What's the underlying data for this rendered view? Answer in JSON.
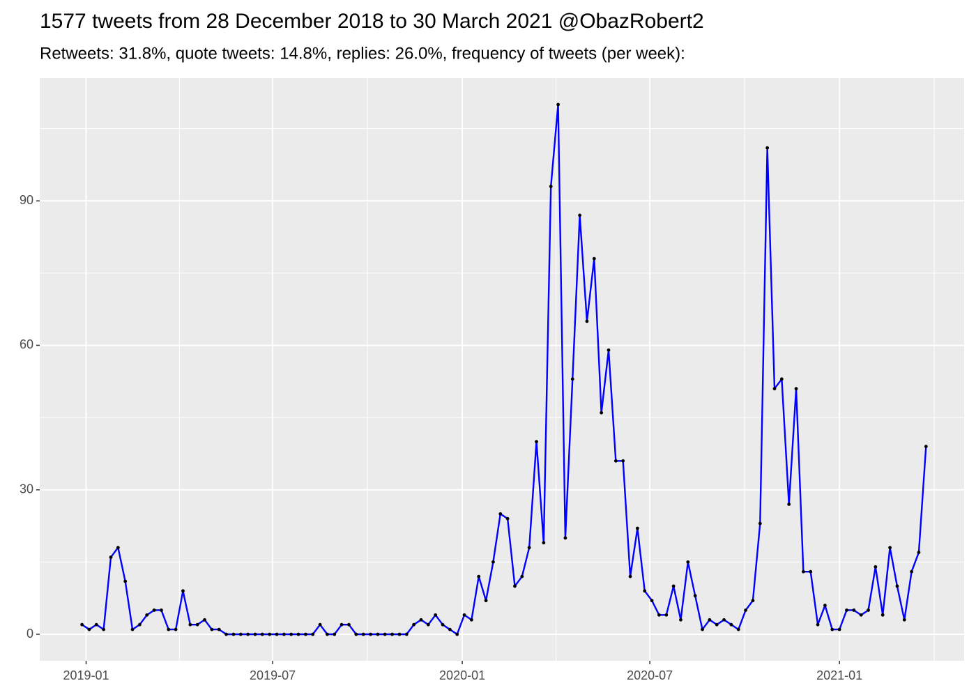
{
  "chart_data": {
    "type": "line",
    "title": "1577 tweets from 28 December 2018 to 30 March 2021 @ObazRobert2",
    "subtitle": "Retweets: 31.8%, quote tweets: 14.8%, replies: 26.0%, frequency of tweets (per week):",
    "x": [
      "2018-12-28",
      "2019-01-04",
      "2019-01-11",
      "2019-01-18",
      "2019-01-25",
      "2019-02-01",
      "2019-02-08",
      "2019-02-15",
      "2019-02-22",
      "2019-03-01",
      "2019-03-08",
      "2019-03-15",
      "2019-03-22",
      "2019-03-29",
      "2019-04-05",
      "2019-04-12",
      "2019-04-19",
      "2019-04-26",
      "2019-05-03",
      "2019-05-10",
      "2019-05-17",
      "2019-05-24",
      "2019-05-31",
      "2019-06-07",
      "2019-06-14",
      "2019-06-21",
      "2019-06-28",
      "2019-07-05",
      "2019-07-12",
      "2019-07-19",
      "2019-07-26",
      "2019-08-02",
      "2019-08-09",
      "2019-08-16",
      "2019-08-23",
      "2019-08-30",
      "2019-09-06",
      "2019-09-13",
      "2019-09-20",
      "2019-09-27",
      "2019-10-04",
      "2019-10-11",
      "2019-10-18",
      "2019-10-25",
      "2019-11-01",
      "2019-11-08",
      "2019-11-15",
      "2019-11-22",
      "2019-11-29",
      "2019-12-06",
      "2019-12-13",
      "2019-12-20",
      "2019-12-27",
      "2020-01-03",
      "2020-01-10",
      "2020-01-17",
      "2020-01-24",
      "2020-01-31",
      "2020-02-07",
      "2020-02-14",
      "2020-02-21",
      "2020-02-28",
      "2020-03-06",
      "2020-03-13",
      "2020-03-20",
      "2020-03-27",
      "2020-04-03",
      "2020-04-10",
      "2020-04-17",
      "2020-04-24",
      "2020-05-01",
      "2020-05-08",
      "2020-05-15",
      "2020-05-22",
      "2020-05-29",
      "2020-06-05",
      "2020-06-12",
      "2020-06-19",
      "2020-06-26",
      "2020-07-03",
      "2020-07-10",
      "2020-07-17",
      "2020-07-24",
      "2020-07-31",
      "2020-08-07",
      "2020-08-14",
      "2020-08-21",
      "2020-08-28",
      "2020-09-04",
      "2020-09-11",
      "2020-09-18",
      "2020-09-25",
      "2020-10-02",
      "2020-10-09",
      "2020-10-16",
      "2020-10-23",
      "2020-10-30",
      "2020-11-06",
      "2020-11-13",
      "2020-11-20",
      "2020-11-27",
      "2020-12-04",
      "2020-12-11",
      "2020-12-18",
      "2020-12-25",
      "2021-01-01",
      "2021-01-08",
      "2021-01-15",
      "2021-01-22",
      "2021-01-29",
      "2021-02-05",
      "2021-02-12",
      "2021-02-19",
      "2021-02-26",
      "2021-03-05",
      "2021-03-12",
      "2021-03-19",
      "2021-03-26"
    ],
    "values": [
      2,
      1,
      2,
      1,
      16,
      18,
      11,
      1,
      2,
      4,
      5,
      5,
      1,
      1,
      9,
      2,
      2,
      3,
      1,
      1,
      0,
      0,
      0,
      0,
      0,
      0,
      0,
      0,
      0,
      0,
      0,
      0,
      0,
      2,
      0,
      0,
      2,
      2,
      0,
      0,
      0,
      0,
      0,
      0,
      0,
      0,
      2,
      3,
      2,
      4,
      2,
      1,
      0,
      4,
      3,
      12,
      7,
      15,
      25,
      24,
      10,
      12,
      18,
      40,
      19,
      93,
      110,
      20,
      53,
      87,
      65,
      78,
      46,
      59,
      36,
      36,
      12,
      22,
      9,
      7,
      4,
      4,
      10,
      3,
      15,
      8,
      1,
      3,
      2,
      3,
      2,
      1,
      5,
      7,
      23,
      101,
      51,
      53,
      27,
      51,
      13,
      13,
      2,
      6,
      1,
      1,
      5,
      5,
      4,
      5,
      14,
      4,
      18,
      10,
      3,
      13,
      17,
      39
    ],
    "color": "#0000ff",
    "point_color": "#000000",
    "xlim": [
      "2018-11-17",
      "2021-05-02"
    ],
    "xticks": [
      "2019-01",
      "2019-07",
      "2020-01",
      "2020-07",
      "2021-01"
    ],
    "ylim": [
      -5.5,
      115.5
    ],
    "yticks": [
      0,
      30,
      60,
      90
    ],
    "grid": true
  }
}
